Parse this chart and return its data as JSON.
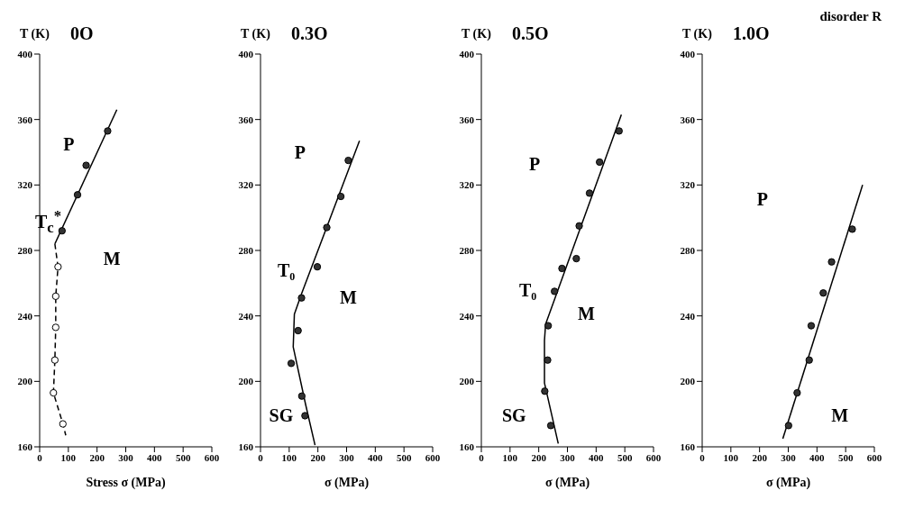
{
  "chart_data": [
    {
      "type": "scatter",
      "title": "0O",
      "xlabel": "Stress σ (MPa)",
      "ylabel": "T (K)",
      "xlim": [
        0,
        600
      ],
      "ylim": [
        160,
        400
      ],
      "xticks": [
        0,
        100,
        200,
        300,
        400,
        500,
        600
      ],
      "yticks": [
        160,
        200,
        240,
        280,
        320,
        360,
        400
      ],
      "series": [
        {
          "color": "#333333",
          "marker": "circle",
          "x": [
            78,
            132,
            162,
            237
          ],
          "values": [
            292,
            314,
            332,
            353
          ]
        },
        {
          "color": "#ffffff",
          "marker": "circle",
          "x": [
            64,
            56,
            56,
            53,
            48,
            81
          ],
          "values": [
            270,
            252,
            233,
            213,
            193,
            174
          ]
        },
        {
          "type": "line",
          "marker": "none",
          "color": "#000000",
          "x": [
            53,
            269
          ],
          "values": [
            284,
            366
          ]
        },
        {
          "type": "line",
          "marker": "none",
          "color": "#000000",
          "line_style": "dashed",
          "x": [
            53,
            64,
            56,
            56,
            53,
            48,
            81,
            91
          ],
          "values": [
            284,
            270,
            252,
            233,
            213,
            193,
            174,
            167
          ]
        }
      ],
      "annotations": [
        "P",
        "M",
        "T$_{c}$$^{*}$"
      ]
    },
    {
      "type": "scatter",
      "title": "0.3O",
      "xlabel": "σ (MPa)",
      "ylabel": "T (K)",
      "xlim": [
        0,
        600
      ],
      "ylim": [
        160,
        400
      ],
      "xticks": [
        0,
        100,
        200,
        300,
        400,
        500,
        600
      ],
      "yticks": [
        160,
        200,
        240,
        280,
        320,
        360,
        400
      ],
      "series": [
        {
          "color": "#333333",
          "marker": "circle",
          "x": [
            155,
            144,
            107,
            131,
            143,
            198,
            231,
            280,
            306
          ],
          "values": [
            179,
            191,
            211,
            231,
            251,
            270,
            294,
            313,
            335
          ]
        },
        {
          "type": "line",
          "marker": "none",
          "color": "#000000",
          "x": [
            190,
            157,
            114,
            118,
            144,
            345
          ],
          "values": [
            161,
            186,
            221,
            241,
            254,
            347
          ]
        }
      ],
      "annotations": [
        "P",
        "M",
        "SG",
        "T₀"
      ]
    },
    {
      "type": "scatter",
      "title": "0.5O",
      "xlabel": "σ (MPa)",
      "ylabel": "T (K)",
      "xlim": [
        0,
        600
      ],
      "ylim": [
        160,
        400
      ],
      "xticks": [
        0,
        100,
        200,
        300,
        400,
        500,
        600
      ],
      "yticks": [
        160,
        200,
        240,
        280,
        320,
        360,
        400
      ],
      "series": [
        {
          "color": "#333333",
          "marker": "circle",
          "x": [
            233,
            231,
            221,
            242,
            255,
            281,
            331,
            341,
            377,
            412,
            480
          ],
          "values": [
            234,
            213,
            194,
            173,
            255,
            269,
            275,
            295,
            315,
            334,
            353
          ]
        },
        {
          "type": "line",
          "marker": "none",
          "color": "#000000",
          "x": [
            268,
            220,
            220,
            224,
            488
          ],
          "values": [
            162,
            199,
            225,
            235,
            363
          ]
        }
      ],
      "annotations": [
        "P",
        "M",
        "SG",
        "T₀"
      ]
    },
    {
      "type": "scatter",
      "title": "1.0O",
      "xlabel": "σ (MPa)",
      "ylabel": "T (K)",
      "xlim": [
        0,
        600
      ],
      "ylim": [
        160,
        400
      ],
      "xticks": [
        0,
        100,
        200,
        300,
        400,
        500,
        600
      ],
      "yticks": [
        160,
        200,
        240,
        280,
        320,
        360,
        400
      ],
      "series": [
        {
          "color": "#333333",
          "marker": "circle",
          "x": [
            301,
            331,
            373,
            380,
            422,
            451,
            523
          ],
          "values": [
            173,
            193,
            213,
            234,
            254,
            273,
            293
          ]
        },
        {
          "type": "line",
          "marker": "none",
          "color": "#000000",
          "x": [
            281,
            559
          ],
          "values": [
            165,
            320
          ]
        }
      ],
      "annotations": [
        "P",
        "M",
        "disorder R"
      ]
    }
  ]
}
